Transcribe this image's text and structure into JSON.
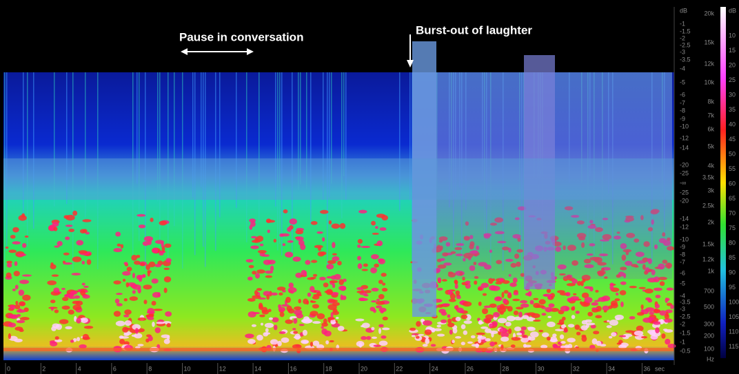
{
  "annotations": {
    "pause": "Pause in conversation",
    "laughter": "Burst-out of laughter"
  },
  "time_axis": {
    "labels": [
      "0",
      "2",
      "4",
      "6",
      "8",
      "10",
      "12",
      "14",
      "16",
      "18",
      "20",
      "22",
      "24",
      "26",
      "28",
      "30",
      "32",
      "34",
      "36"
    ],
    "unit": "sec"
  },
  "level_scale": {
    "unit": "dB",
    "labels": [
      "-1",
      "-1.5",
      "-2",
      "-2.5",
      "-3",
      "-3.5",
      "-4",
      "-5",
      "-6",
      "-7",
      "-8",
      "-9",
      "-10",
      "-12",
      "-14",
      "-20",
      "-25",
      "-∞",
      "-25",
      "-20",
      "-14",
      "-12",
      "-10",
      "-9",
      "-8",
      "-7",
      "-6",
      "-5",
      "-4",
      "-3.5",
      "-3",
      "-2.5",
      "-2",
      "-1.5",
      "-1",
      "-0.5"
    ]
  },
  "frequency_scale": {
    "labels": [
      "20k",
      "15k",
      "12k",
      "10k",
      "8k",
      "7k",
      "6k",
      "5k",
      "4k",
      "3.5k",
      "3k",
      "2.5k",
      "2k",
      "1.5k",
      "1.2k",
      "1k",
      "700",
      "500",
      "300",
      "200",
      "100"
    ],
    "unit": "Hz"
  },
  "color_scale": {
    "unit": "dB",
    "labels": [
      "10",
      "15",
      "20",
      "25",
      "30",
      "35",
      "40",
      "45",
      "50",
      "55",
      "60",
      "65",
      "70",
      "75",
      "80",
      "85",
      "90",
      "95",
      "100",
      "105",
      "110",
      "115"
    ]
  }
}
